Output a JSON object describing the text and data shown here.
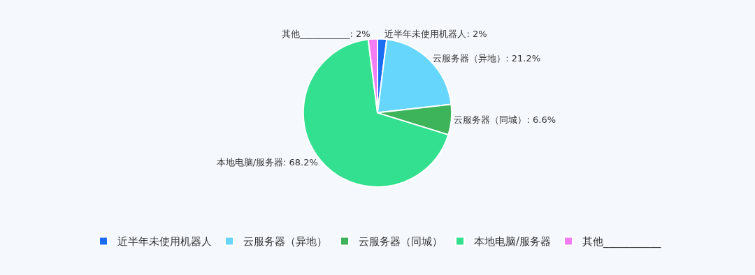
{
  "chart_data": {
    "type": "pie",
    "categories": [
      "近半年未使用机器人",
      "云服务器（异地）",
      "云服务器（同城）",
      "本地电脑/服务器",
      "其他___________"
    ],
    "values": [
      2,
      21.2,
      6.6,
      68.2,
      2
    ],
    "colors": [
      "#1b6ef3",
      "#66d6fc",
      "#3db35a",
      "#33e08f",
      "#f27df3"
    ],
    "value_labels": [
      ": 2%",
      ": 21.2%",
      ": 6.6%",
      ": 68.2%",
      ": 2%"
    ],
    "legend": "bottom"
  }
}
